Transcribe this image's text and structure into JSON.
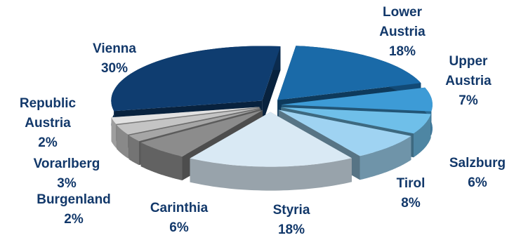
{
  "chart_data": {
    "type": "pie",
    "categories": [
      "Lower Austria",
      "Upper Austria",
      "Salzburg",
      "Tirol",
      "Styria",
      "Carinthia",
      "Burgenland",
      "Vorarlberg",
      "Republic Austria",
      "Vienna"
    ],
    "values": [
      18,
      7,
      6,
      8,
      18,
      6,
      2,
      3,
      2,
      30
    ],
    "value_labels": [
      "18%",
      "7%",
      "6%",
      "8%",
      "18%",
      "6%",
      "2%",
      "3%",
      "2%",
      "30%"
    ],
    "colors": [
      "#1a6aa8",
      "#3d9bd6",
      "#6fbfe9",
      "#9fd3f2",
      "#d9e9f4",
      "#8c8c8c",
      "#a6a6a6",
      "#c4c4c4",
      "#e2e2e2",
      "#0f3d70"
    ]
  }
}
